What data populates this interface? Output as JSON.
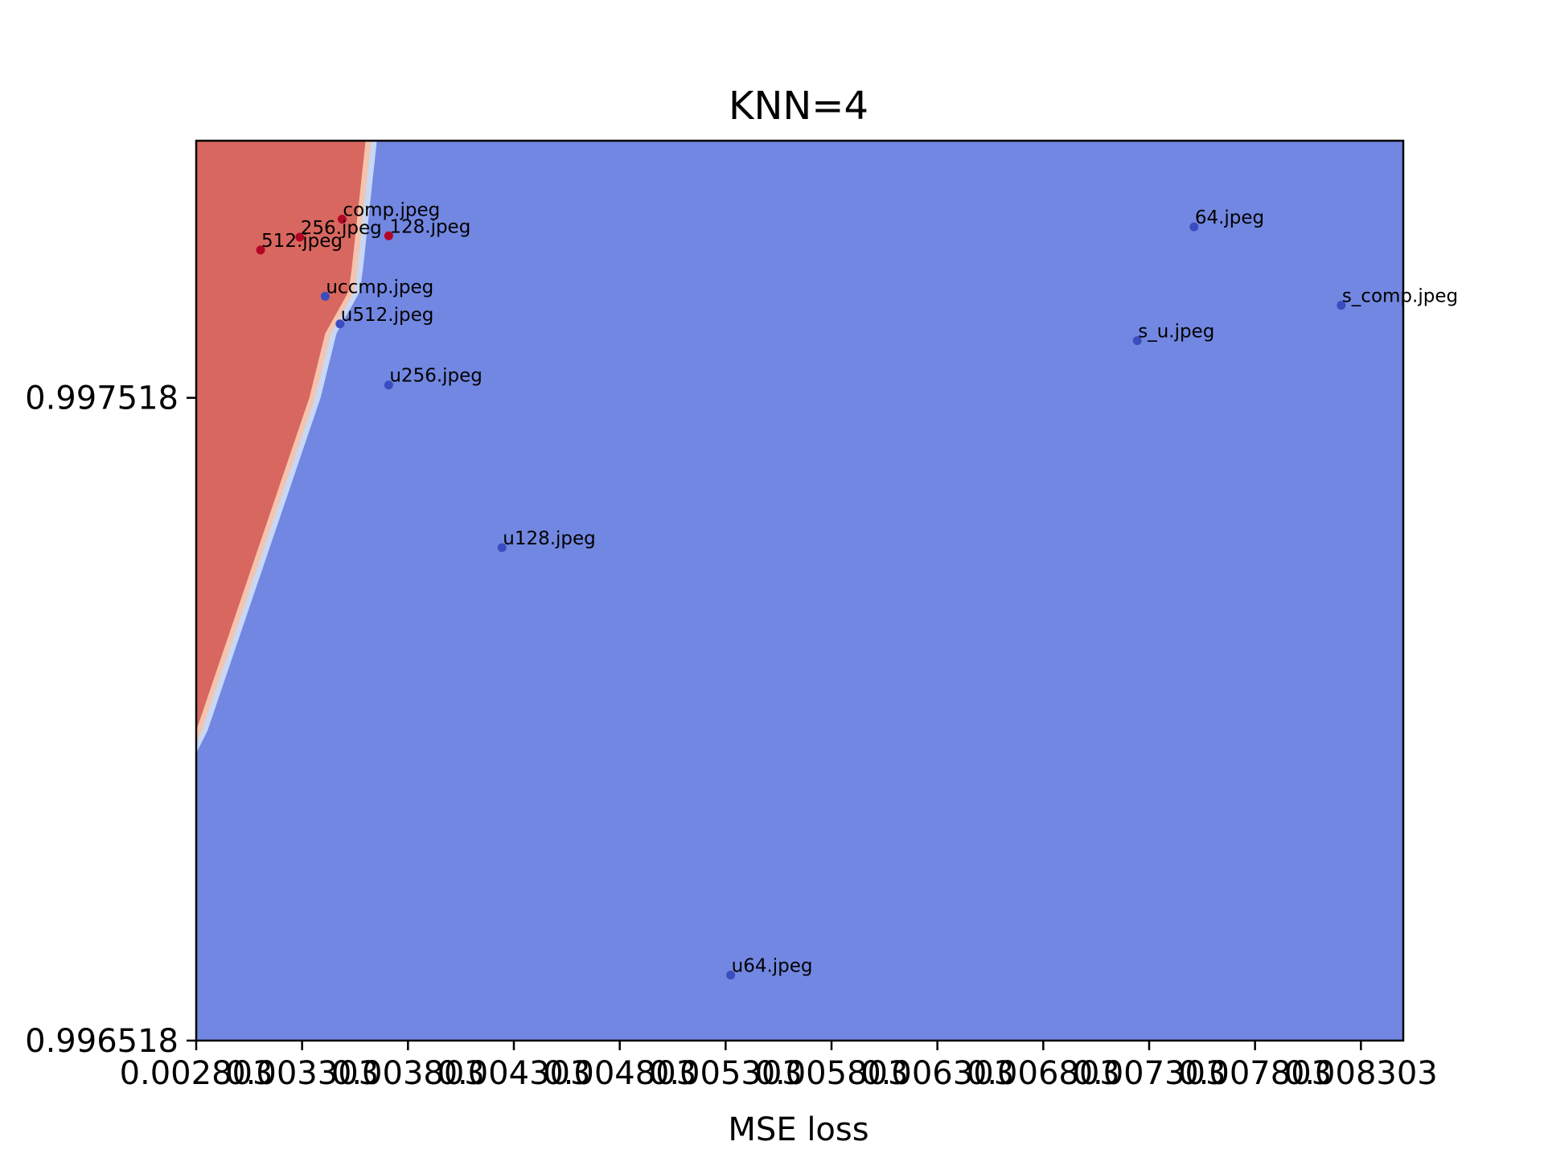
{
  "chart_data": {
    "type": "scatter",
    "title": "KNN=4",
    "xlabel": "MSE loss",
    "ylabel": "",
    "xlim": [
      0.002803,
      0.008503
    ],
    "ylim": [
      0.996518,
      0.997918
    ],
    "x_ticks": [
      {
        "value": 0.002803,
        "label": "0.002803"
      },
      {
        "value": 0.003303,
        "label": "0.003303"
      },
      {
        "value": 0.003803,
        "label": "0.003803"
      },
      {
        "value": 0.004303,
        "label": "0.004303"
      },
      {
        "value": 0.004803,
        "label": "0.004803"
      },
      {
        "value": 0.005303,
        "label": "0.005303"
      },
      {
        "value": 0.005803,
        "label": "0.005803"
      },
      {
        "value": 0.006303,
        "label": "0.006303"
      },
      {
        "value": 0.006803,
        "label": "0.006803"
      },
      {
        "value": 0.007303,
        "label": "0.007303"
      },
      {
        "value": 0.007803,
        "label": "0.007803"
      },
      {
        "value": 0.008303,
        "label": "0.008303"
      }
    ],
    "y_ticks": [
      {
        "value": 0.996518,
        "label": "0.996518"
      },
      {
        "value": 0.997518,
        "label": "0.997518"
      }
    ],
    "grid": false,
    "colors": {
      "red_region": "#d8675f",
      "blue_region": "#7287e1",
      "boundary_light_red": "#f4c4ae",
      "boundary_light_blue": "#c7d7f5",
      "red_point": "#b40426",
      "blue_point": "#3b4cc0"
    },
    "decision_boundary_x": [
      {
        "y": 0.997918,
        "x": 0.003603
      },
      {
        "y": 0.997718,
        "x": 0.003537
      },
      {
        "y": 0.997683,
        "x": 0.003522
      },
      {
        "y": 0.997618,
        "x": 0.003412
      },
      {
        "y": 0.997518,
        "x": 0.003337
      },
      {
        "y": 0.997,
        "x": 0.002803
      }
    ],
    "points": [
      {
        "label": "comp.jpeg",
        "x": 0.003492,
        "y": 0.997796,
        "class": "red"
      },
      {
        "label": "256.jpeg",
        "x": 0.003292,
        "y": 0.997768,
        "class": "red"
      },
      {
        "label": "128.jpeg",
        "x": 0.003712,
        "y": 0.99777,
        "class": "red"
      },
      {
        "label": "512.jpeg",
        "x": 0.003107,
        "y": 0.997748,
        "class": "red"
      },
      {
        "label": "64.jpeg",
        "x": 0.007515,
        "y": 0.997784,
        "class": "blue"
      },
      {
        "label": "s_comp.jpeg",
        "x": 0.00821,
        "y": 0.997662,
        "class": "blue"
      },
      {
        "label": "uccmp.jpeg",
        "x": 0.003412,
        "y": 0.997676,
        "class": "blue"
      },
      {
        "label": "u512.jpeg",
        "x": 0.003482,
        "y": 0.997633,
        "class": "blue"
      },
      {
        "label": "s_u.jpeg",
        "x": 0.007247,
        "y": 0.997607,
        "class": "blue"
      },
      {
        "label": "u256.jpeg",
        "x": 0.003712,
        "y": 0.997538,
        "class": "blue"
      },
      {
        "label": "u128.jpeg",
        "x": 0.004247,
        "y": 0.997285,
        "class": "blue"
      },
      {
        "label": "u64.jpeg",
        "x": 0.005327,
        "y": 0.99662,
        "class": "blue"
      }
    ]
  }
}
